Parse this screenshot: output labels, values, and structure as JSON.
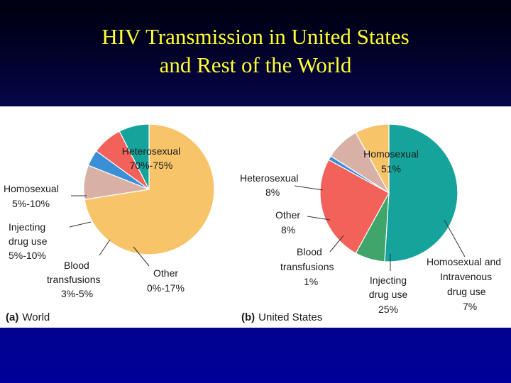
{
  "slide": {
    "title_line1": "HIV Transmission in United States",
    "title_line2": "and Rest of the World"
  },
  "chart_data": [
    {
      "type": "pie",
      "caption_prefix": "(a)",
      "caption": "World",
      "slices": [
        {
          "label": "Heterosexual",
          "value_label": "70%-75%",
          "value": 72.5,
          "color": "#f7c46a"
        },
        {
          "label": "Other",
          "value_label": "0%-17%",
          "value": 8.5,
          "color": "#d9b0a6"
        },
        {
          "label": "Blood transfusions",
          "value_label": "3%-5%",
          "value": 4,
          "color": "#3a8fd6"
        },
        {
          "label": "Injecting drug use",
          "value_label": "5%-10%",
          "value": 7.5,
          "color": "#f2615a"
        },
        {
          "label": "Homosexual",
          "value_label": "5%-10%",
          "value": 7.5,
          "color": "#16a39c"
        }
      ]
    },
    {
      "type": "pie",
      "caption_prefix": "(b)",
      "caption": "United States",
      "slices": [
        {
          "label": "Homosexual",
          "value_label": "51%",
          "value": 51,
          "color": "#16a39c"
        },
        {
          "label": "Homosexual and Intravenous drug use",
          "value_label": "7%",
          "value": 7,
          "color": "#3fa56a"
        },
        {
          "label": "Injecting drug use",
          "value_label": "25%",
          "value": 25,
          "color": "#f2615a"
        },
        {
          "label": "Blood transfusions",
          "value_label": "1%",
          "value": 1,
          "color": "#3a8fd6"
        },
        {
          "label": "Other",
          "value_label": "8%",
          "value": 8,
          "color": "#d9b0a6"
        },
        {
          "label": "Heterosexual",
          "value_label": "8%",
          "value": 8,
          "color": "#f7c46a"
        }
      ]
    }
  ],
  "text_labels": {
    "world": {
      "hetero1": "Heterosexual",
      "hetero2": "70%-75%",
      "homo1": "Homosexual",
      "homo2": "5%-10%",
      "inj1": "Injecting",
      "inj2": "drug use",
      "inj3": "5%-10%",
      "blood1": "Blood",
      "blood2": "transfusions",
      "blood3": "3%-5%",
      "other1": "Other",
      "other2": "0%-17%"
    },
    "us": {
      "homo1": "Homosexual",
      "homo2": "51%",
      "hetero1": "Heterosexual",
      "hetero2": "8%",
      "other1": "Other",
      "other2": "8%",
      "blood1": "Blood",
      "blood2": "transfusions",
      "blood3": "1%",
      "inj1": "Injecting",
      "inj2": "drug use",
      "inj3": "25%",
      "hiv1": "Homosexual and",
      "hiv2": "Intravenous",
      "hiv3": "drug use",
      "hiv4": "7%"
    }
  }
}
